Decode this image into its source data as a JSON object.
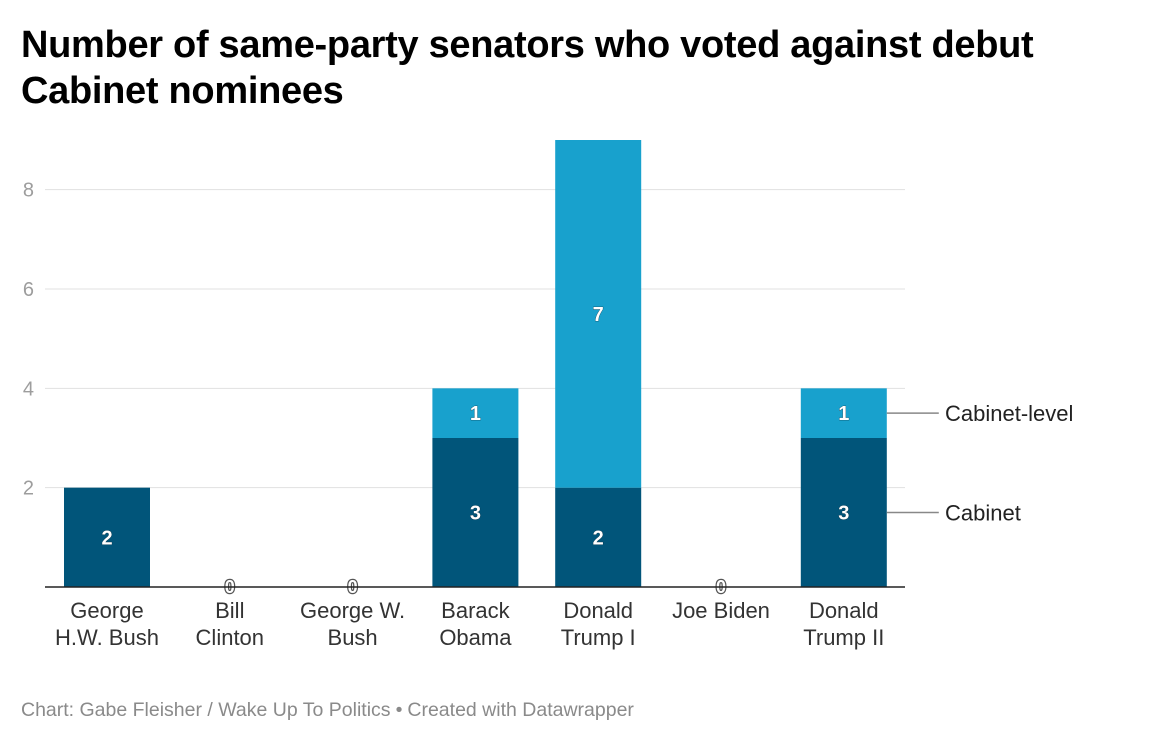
{
  "title": "Number of same-party senators who voted against debut Cabinet nominees",
  "footer": {
    "credit": "Chart: Gabe Fleisher / Wake Up To Politics",
    "separator": "•",
    "tool": "Created with Datawrapper"
  },
  "chart_data": {
    "type": "bar",
    "stacked": true,
    "categories": [
      [
        "George",
        "H.W. Bush"
      ],
      [
        "Bill",
        "Clinton"
      ],
      [
        "George W.",
        "Bush"
      ],
      [
        "Barack",
        "Obama"
      ],
      [
        "Donald",
        "Trump I"
      ],
      [
        "Joe Biden"
      ],
      [
        "Donald",
        "Trump II"
      ]
    ],
    "series": [
      {
        "name": "Cabinet",
        "color": "#01557a",
        "values": [
          2,
          0,
          0,
          3,
          2,
          0,
          3
        ]
      },
      {
        "name": "Cabinet-level",
        "color": "#18a1cd",
        "values": [
          0,
          0,
          0,
          1,
          7,
          0,
          1
        ]
      }
    ],
    "data_labels": [
      [
        "2",
        "0",
        "0",
        "3",
        "2",
        "0",
        "3"
      ],
      [
        "",
        "",
        "",
        "1",
        "7",
        "",
        "1"
      ]
    ],
    "ylim": [
      0,
      9
    ],
    "yticks": [
      2,
      4,
      6,
      8
    ],
    "grid": true,
    "legend": "inline-right",
    "xlabel": "",
    "ylabel": ""
  }
}
